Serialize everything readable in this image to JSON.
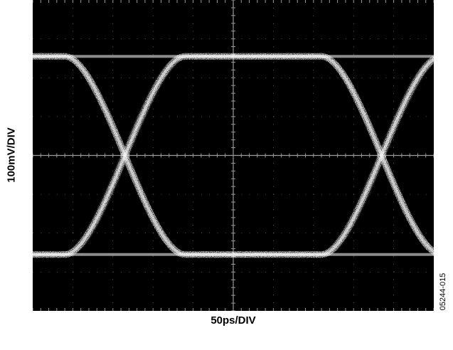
{
  "chart_data": {
    "type": "eye-diagram",
    "xlabel": "50ps/DIV",
    "ylabel": "100mV/DIV",
    "figure_id": "05244-015",
    "divisions": {
      "x": 10,
      "y": 8
    },
    "x_units_per_div": 50,
    "y_units_per_div": 100,
    "x_range_ps": [
      0,
      500
    ],
    "y_range_mV": [
      -400,
      400
    ],
    "grid": true,
    "background_color": "#000000",
    "trace_color": "#ffffff",
    "levels_mV": {
      "high": 255,
      "low": -255
    },
    "crossings": [
      {
        "t_ps": 115,
        "v_mV": 0
      },
      {
        "t_ps": 435,
        "v_mV": 0
      }
    ],
    "transition_ps": 150
  }
}
